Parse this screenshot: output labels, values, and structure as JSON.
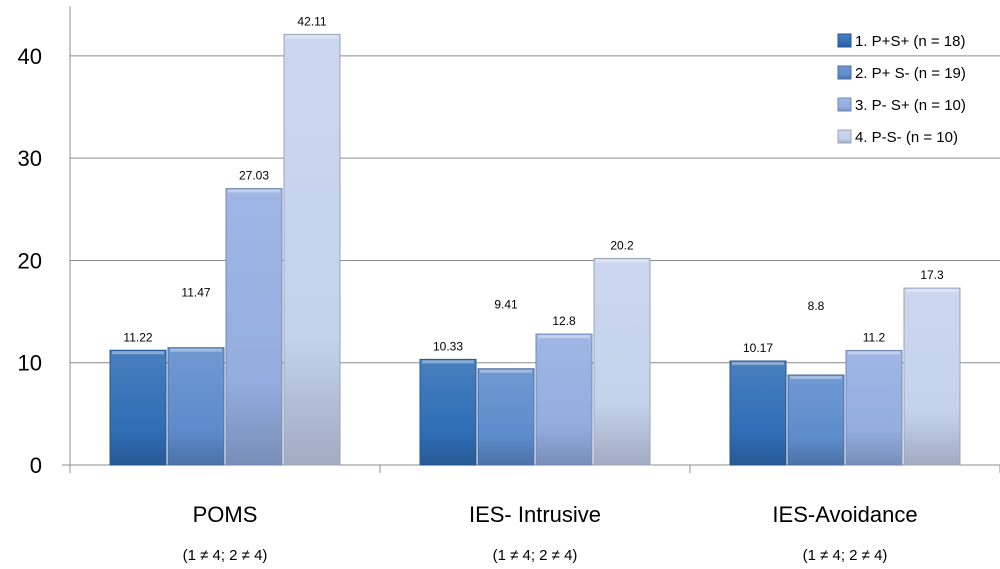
{
  "chart_data": {
    "type": "bar",
    "categories": [
      "POMS",
      "IES- Intrusive",
      "IES-Avoidance"
    ],
    "category_notes": [
      "(1 ≠ 4; 2 ≠ 4)",
      "(1 ≠ 4; 2 ≠ 4)",
      "(1 ≠ 4; 2 ≠ 4)"
    ],
    "series": [
      {
        "name": "1. P+S+ (n = 18)",
        "values": [
          11.22,
          10.33,
          10.17
        ],
        "labels": [
          "11.22",
          "10.33",
          "10.17"
        ],
        "color": "#2f6db5"
      },
      {
        "name": "2. P+ S- (n = 19)",
        "values": [
          11.47,
          9.41,
          8.8
        ],
        "labels": [
          "11.47",
          "9.41",
          "8.8"
        ],
        "color": "#5d8bcc"
      },
      {
        "name": "3. P- S+ (n = 10)",
        "values": [
          27.03,
          12.8,
          11.2
        ],
        "labels": [
          "27.03",
          "12.8",
          "11.2"
        ],
        "color": "#93ade0"
      },
      {
        "name": "4. P-S- (n = 10)",
        "values": [
          42.11,
          20.2,
          17.3
        ],
        "labels": [
          "42.11",
          "20.2",
          "17.3"
        ],
        "color": "#c4d2ec"
      }
    ],
    "yticks": [
      "0",
      "10",
      "20",
      "30",
      "40"
    ],
    "ylim": [
      0,
      44
    ],
    "grid": true,
    "legend": "top-right"
  }
}
